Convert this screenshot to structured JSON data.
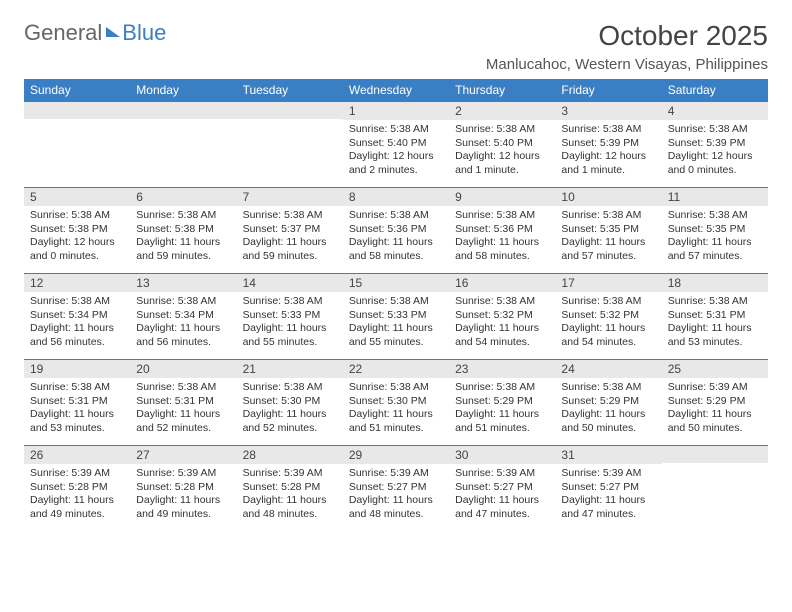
{
  "brand": {
    "word1": "General",
    "word2": "Blue"
  },
  "title": "October 2025",
  "location": "Manlucahoc, Western Visayas, Philippines",
  "colors": {
    "header_bg": "#3a7fc4",
    "header_fg": "#ffffff",
    "daynum_bg": "#e8e8e8",
    "row_border": "#3a7fc4",
    "text": "#333333",
    "background": "#ffffff"
  },
  "typography": {
    "title_fontsize": 28,
    "location_fontsize": 15,
    "dayheader_fontsize": 12,
    "cell_fontsize": 10.5
  },
  "day_headers": [
    "Sunday",
    "Monday",
    "Tuesday",
    "Wednesday",
    "Thursday",
    "Friday",
    "Saturday"
  ],
  "weeks": [
    [
      null,
      null,
      null,
      {
        "n": "1",
        "sr": "Sunrise: 5:38 AM",
        "ss": "Sunset: 5:40 PM",
        "dl": "Daylight: 12 hours and 2 minutes."
      },
      {
        "n": "2",
        "sr": "Sunrise: 5:38 AM",
        "ss": "Sunset: 5:40 PM",
        "dl": "Daylight: 12 hours and 1 minute."
      },
      {
        "n": "3",
        "sr": "Sunrise: 5:38 AM",
        "ss": "Sunset: 5:39 PM",
        "dl": "Daylight: 12 hours and 1 minute."
      },
      {
        "n": "4",
        "sr": "Sunrise: 5:38 AM",
        "ss": "Sunset: 5:39 PM",
        "dl": "Daylight: 12 hours and 0 minutes."
      }
    ],
    [
      {
        "n": "5",
        "sr": "Sunrise: 5:38 AM",
        "ss": "Sunset: 5:38 PM",
        "dl": "Daylight: 12 hours and 0 minutes."
      },
      {
        "n": "6",
        "sr": "Sunrise: 5:38 AM",
        "ss": "Sunset: 5:38 PM",
        "dl": "Daylight: 11 hours and 59 minutes."
      },
      {
        "n": "7",
        "sr": "Sunrise: 5:38 AM",
        "ss": "Sunset: 5:37 PM",
        "dl": "Daylight: 11 hours and 59 minutes."
      },
      {
        "n": "8",
        "sr": "Sunrise: 5:38 AM",
        "ss": "Sunset: 5:36 PM",
        "dl": "Daylight: 11 hours and 58 minutes."
      },
      {
        "n": "9",
        "sr": "Sunrise: 5:38 AM",
        "ss": "Sunset: 5:36 PM",
        "dl": "Daylight: 11 hours and 58 minutes."
      },
      {
        "n": "10",
        "sr": "Sunrise: 5:38 AM",
        "ss": "Sunset: 5:35 PM",
        "dl": "Daylight: 11 hours and 57 minutes."
      },
      {
        "n": "11",
        "sr": "Sunrise: 5:38 AM",
        "ss": "Sunset: 5:35 PM",
        "dl": "Daylight: 11 hours and 57 minutes."
      }
    ],
    [
      {
        "n": "12",
        "sr": "Sunrise: 5:38 AM",
        "ss": "Sunset: 5:34 PM",
        "dl": "Daylight: 11 hours and 56 minutes."
      },
      {
        "n": "13",
        "sr": "Sunrise: 5:38 AM",
        "ss": "Sunset: 5:34 PM",
        "dl": "Daylight: 11 hours and 56 minutes."
      },
      {
        "n": "14",
        "sr": "Sunrise: 5:38 AM",
        "ss": "Sunset: 5:33 PM",
        "dl": "Daylight: 11 hours and 55 minutes."
      },
      {
        "n": "15",
        "sr": "Sunrise: 5:38 AM",
        "ss": "Sunset: 5:33 PM",
        "dl": "Daylight: 11 hours and 55 minutes."
      },
      {
        "n": "16",
        "sr": "Sunrise: 5:38 AM",
        "ss": "Sunset: 5:32 PM",
        "dl": "Daylight: 11 hours and 54 minutes."
      },
      {
        "n": "17",
        "sr": "Sunrise: 5:38 AM",
        "ss": "Sunset: 5:32 PM",
        "dl": "Daylight: 11 hours and 54 minutes."
      },
      {
        "n": "18",
        "sr": "Sunrise: 5:38 AM",
        "ss": "Sunset: 5:31 PM",
        "dl": "Daylight: 11 hours and 53 minutes."
      }
    ],
    [
      {
        "n": "19",
        "sr": "Sunrise: 5:38 AM",
        "ss": "Sunset: 5:31 PM",
        "dl": "Daylight: 11 hours and 53 minutes."
      },
      {
        "n": "20",
        "sr": "Sunrise: 5:38 AM",
        "ss": "Sunset: 5:31 PM",
        "dl": "Daylight: 11 hours and 52 minutes."
      },
      {
        "n": "21",
        "sr": "Sunrise: 5:38 AM",
        "ss": "Sunset: 5:30 PM",
        "dl": "Daylight: 11 hours and 52 minutes."
      },
      {
        "n": "22",
        "sr": "Sunrise: 5:38 AM",
        "ss": "Sunset: 5:30 PM",
        "dl": "Daylight: 11 hours and 51 minutes."
      },
      {
        "n": "23",
        "sr": "Sunrise: 5:38 AM",
        "ss": "Sunset: 5:29 PM",
        "dl": "Daylight: 11 hours and 51 minutes."
      },
      {
        "n": "24",
        "sr": "Sunrise: 5:38 AM",
        "ss": "Sunset: 5:29 PM",
        "dl": "Daylight: 11 hours and 50 minutes."
      },
      {
        "n": "25",
        "sr": "Sunrise: 5:39 AM",
        "ss": "Sunset: 5:29 PM",
        "dl": "Daylight: 11 hours and 50 minutes."
      }
    ],
    [
      {
        "n": "26",
        "sr": "Sunrise: 5:39 AM",
        "ss": "Sunset: 5:28 PM",
        "dl": "Daylight: 11 hours and 49 minutes."
      },
      {
        "n": "27",
        "sr": "Sunrise: 5:39 AM",
        "ss": "Sunset: 5:28 PM",
        "dl": "Daylight: 11 hours and 49 minutes."
      },
      {
        "n": "28",
        "sr": "Sunrise: 5:39 AM",
        "ss": "Sunset: 5:28 PM",
        "dl": "Daylight: 11 hours and 48 minutes."
      },
      {
        "n": "29",
        "sr": "Sunrise: 5:39 AM",
        "ss": "Sunset: 5:27 PM",
        "dl": "Daylight: 11 hours and 48 minutes."
      },
      {
        "n": "30",
        "sr": "Sunrise: 5:39 AM",
        "ss": "Sunset: 5:27 PM",
        "dl": "Daylight: 11 hours and 47 minutes."
      },
      {
        "n": "31",
        "sr": "Sunrise: 5:39 AM",
        "ss": "Sunset: 5:27 PM",
        "dl": "Daylight: 11 hours and 47 minutes."
      },
      null
    ]
  ]
}
